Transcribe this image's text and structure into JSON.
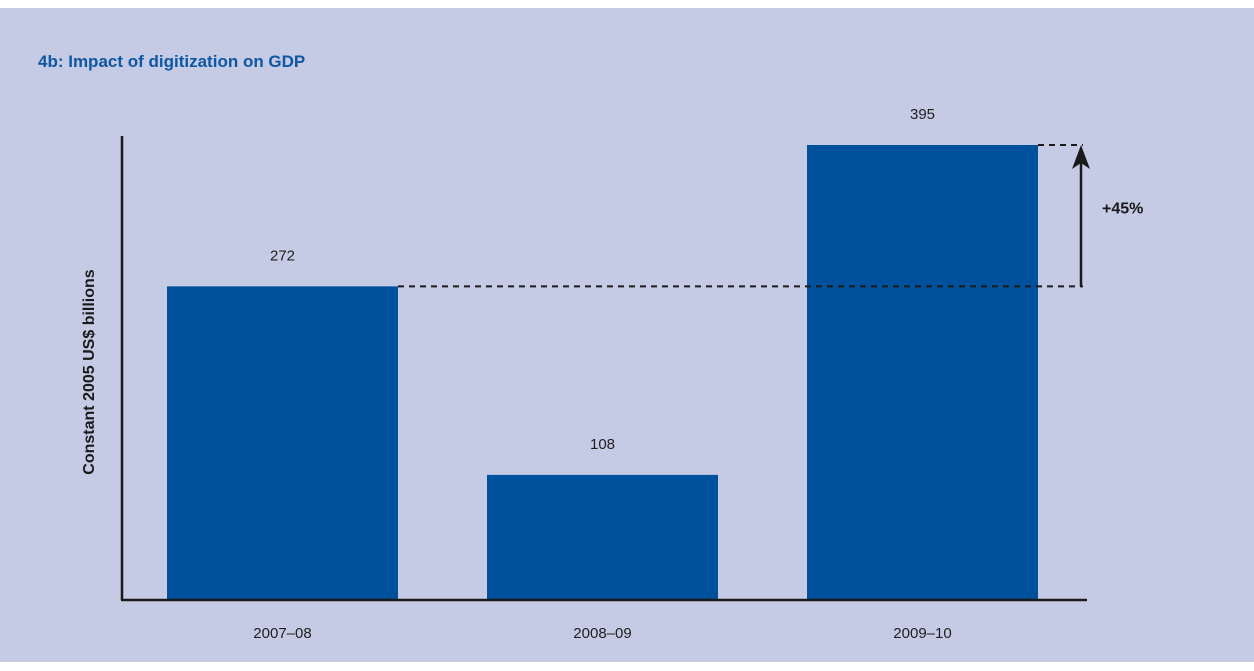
{
  "chart_data": {
    "type": "bar",
    "title": "4b: Impact of digitization on GDP",
    "ylabel": "Constant 2005 US$ billions",
    "xlabel": "",
    "categories": [
      "2007–08",
      "2008–09",
      "2009–10"
    ],
    "values": [
      272,
      108,
      395
    ],
    "ylim": [
      0,
      395
    ],
    "grid": false,
    "annotation": {
      "text": "+45%",
      "from_category": "2007–08",
      "to_category": "2009–10"
    }
  },
  "colors": {
    "background": "#c5cbe4",
    "bar": "#00519b",
    "title": "#0f57a2",
    "axis": "#1a1a1a"
  }
}
